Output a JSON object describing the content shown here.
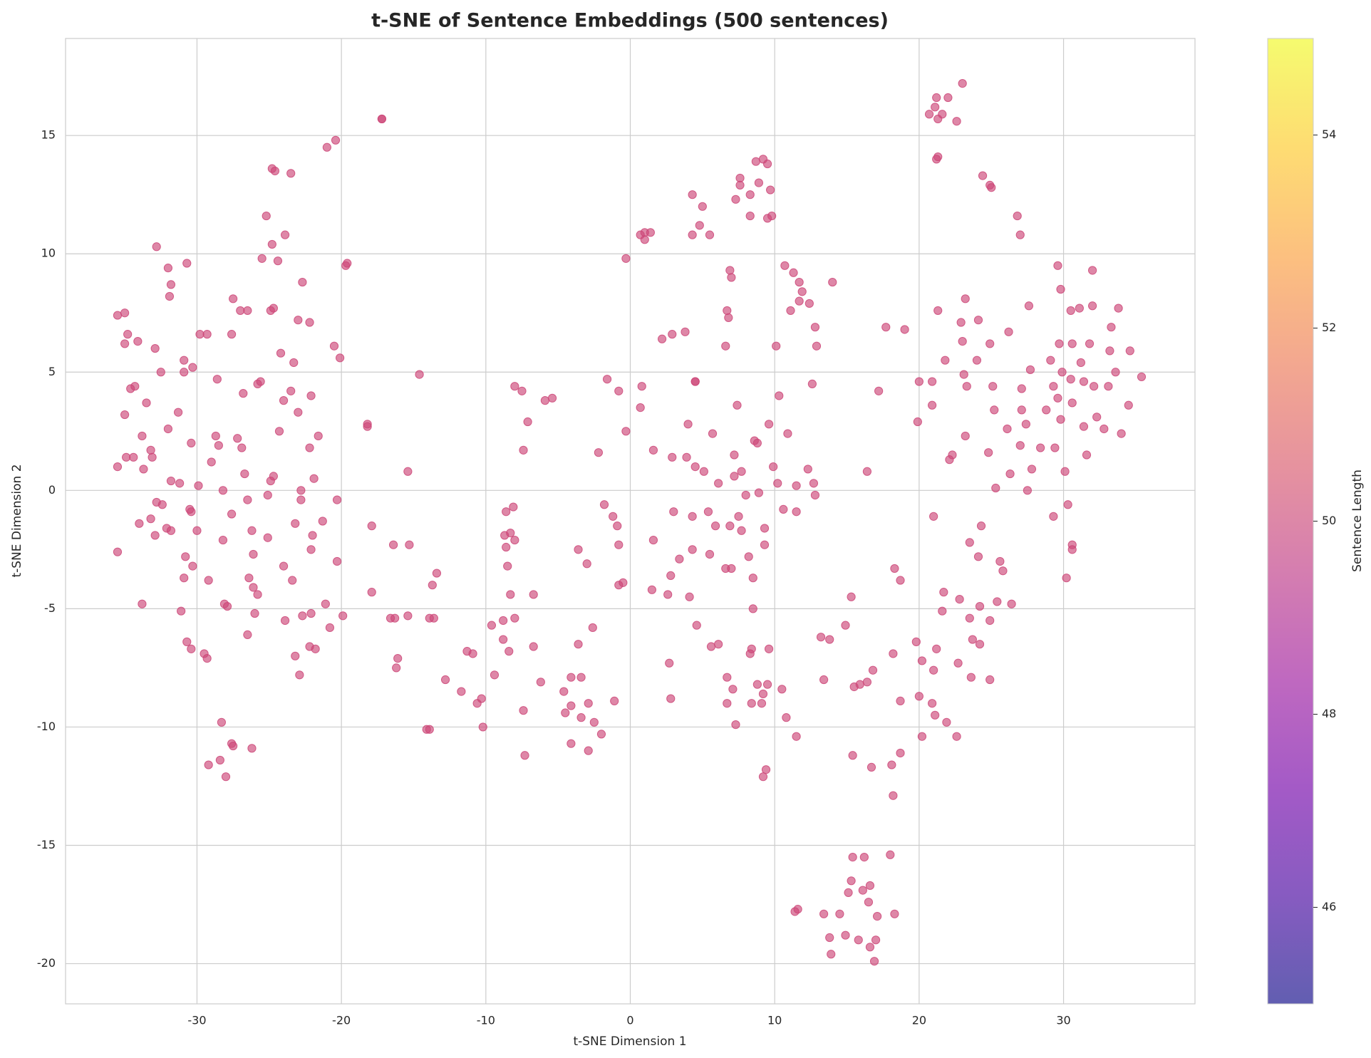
{
  "chart_data": {
    "type": "scatter",
    "title": "t-SNE of Sentence Embeddings (500 sentences)",
    "xlabel": "t-SNE Dimension 1",
    "ylabel": "t-SNE Dimension 2",
    "xlim": [
      -39.1,
      39.1
    ],
    "ylim": [
      -21.7,
      19.1
    ],
    "xticks": [
      -30,
      -20,
      -10,
      0,
      10,
      20,
      30
    ],
    "yticks": [
      -20,
      -15,
      -10,
      -5,
      0,
      5,
      10,
      15
    ],
    "grid": true,
    "colorbar": {
      "label": "Sentence Length",
      "colormap": "plasma",
      "lim": [
        45,
        55
      ],
      "ticks": [
        46,
        48,
        50,
        52,
        54
      ]
    },
    "series": [
      {
        "color": "#cc4778",
        "alpha": 0.65,
        "x": [
          -35.5,
          -35,
          -34.8,
          -35,
          -34.1,
          -34.6,
          -34.3,
          -33.5,
          -35,
          -33.8,
          -35.5,
          -34.9,
          -34.4,
          -33.7,
          -33.2,
          -33.1,
          -32.9,
          -32.8,
          -32,
          -31.8,
          -31.9,
          -32.5,
          -32,
          -31.3,
          -31.8,
          -31.2,
          -32.4,
          -32.8,
          -33.2,
          -34,
          -32.1,
          -31.8,
          -32.9,
          -35.5,
          -33.8,
          -31.1,
          -30.9,
          -30.8,
          -30.3,
          -30.5,
          -30.4,
          -30,
          -29.9,
          -30.4,
          -30.9,
          -30.9,
          -30.3,
          -29.8,
          -29.3,
          -30.7,
          -28.6,
          -28.7,
          -28.5,
          -29,
          -28.2,
          -28.2,
          -29.2,
          -30.7,
          -30.4,
          -29.5,
          -29.3,
          -28.1,
          -27.9,
          -28.3,
          -27.5,
          -27.6,
          -28.4,
          -29.2,
          -28,
          -26.2,
          -27.6,
          -27.6,
          -27.5,
          -27,
          -26.5,
          -27.2,
          -26.9,
          -26.8,
          -26.7,
          -26.5,
          -26.2,
          -26.1,
          -25.8,
          -26.1,
          -26,
          -26.4,
          -26.5,
          -25.8,
          -25.6,
          -25.5,
          -25.2,
          -24.8,
          -24.4,
          -24.9,
          -24.7,
          -24.8,
          -24.6,
          -23.5,
          -23.9,
          -23.3,
          -23,
          -22.7,
          -22.2,
          -24.2,
          -24,
          -24.3,
          -23.5,
          -23,
          -24.7,
          -24.9,
          -25.1,
          -25.1,
          -22.8,
          -22.8,
          -23.2,
          -24,
          -23.4,
          -23.9,
          -23.2,
          -22.9,
          -22.7,
          -22.1,
          -22.2,
          -21.8,
          -22.1,
          -22,
          -21.9,
          -22.2,
          -21.6,
          -22.1,
          -21.3,
          -21.1,
          -20.8,
          -20.3,
          -20.3,
          -20.5,
          -20.1,
          -19.7,
          -19.6,
          -20.4,
          -21,
          -19.9,
          -18.2,
          -18.2,
          -17.9,
          -17.9,
          -17.2,
          -17.2,
          -16.6,
          -16.4,
          -16.3,
          -16.2,
          -16.1,
          -15.4,
          -15.4,
          -15.3,
          -14.6,
          -14.1,
          -13.9,
          -13.9,
          -13.7,
          -13.6,
          -13.4,
          -12.8,
          -11.7,
          -11.3,
          -10.9,
          -10.6,
          -10.3,
          -10.2,
          -9.6,
          -9.4,
          -8.8,
          -8.8,
          -8.7,
          -8.6,
          -8.6,
          -8.3,
          -8.1,
          -8.0,
          -8.5,
          -8.3,
          -8.4,
          -8.0,
          -8.0,
          -7.5,
          -7.4,
          -7.1,
          -7.4,
          -7.3,
          -6.7,
          -6.7,
          -6.2,
          -5.9,
          -5.4,
          -4.6,
          -4.5,
          -4.1,
          -4.1,
          -4.1,
          -3.6,
          -3.6,
          -3.4,
          -3.4,
          -3.0,
          -2.9,
          -2.9,
          -2.5,
          -2.6,
          -2.2,
          -2.0,
          -1.8,
          -1.6,
          -1.2,
          -1.1,
          -0.9,
          -0.8,
          -0.8,
          -0.8,
          -0.5,
          -0.3,
          -0.3,
          0.7,
          1.0,
          1.0,
          1.4,
          0.8,
          0.7,
          1.6,
          1.5,
          1.6,
          2.2,
          2.6,
          2.7,
          2.8,
          2.8,
          2.9,
          2.9,
          3.0,
          3.4,
          3.8,
          3.9,
          4.0,
          4.1,
          4.3,
          4.3,
          4.3,
          4.3,
          4.5,
          4.5,
          4.5,
          4.6,
          4.8,
          5.0,
          5.1,
          5.4,
          5.5,
          5.5,
          5.6,
          5.7,
          5.9,
          6.1,
          6.1,
          6.6,
          6.6,
          6.7,
          6.7,
          6.7,
          6.8,
          6.9,
          6.9,
          7.0,
          7.0,
          7.1,
          7.2,
          7.2,
          7.3,
          7.3,
          7.4,
          7.5,
          7.6,
          7.6,
          7.7,
          7.7,
          8.0,
          8.2,
          8.3,
          8.3,
          8.3,
          8.4,
          8.4,
          8.5,
          8.5,
          8.6,
          8.7,
          8.8,
          8.8,
          8.9,
          8.9,
          9.1,
          9.2,
          9.2,
          9.2,
          9.3,
          9.3,
          9.4,
          9.5,
          9.5,
          9.5,
          9.6,
          9.6,
          9.7,
          9.8,
          9.9,
          10.1,
          10.2,
          10.3,
          10.5,
          10.6,
          10.7,
          10.8,
          10.9,
          11.1,
          11.3,
          11.5,
          11.5,
          11.5,
          11.7,
          11.7,
          11.9,
          12.3,
          12.4,
          12.6,
          12.7,
          12.8,
          12.8,
          12.9,
          11.4,
          11.6,
          13.2,
          13.4,
          13.4,
          13.8,
          13.8,
          13.9,
          14.0,
          14.5,
          14.9,
          14.9,
          15.1,
          15.3,
          15.3,
          15.4,
          15.4,
          15.5,
          15.8,
          15.9,
          16.1,
          16.2,
          16.4,
          16.4,
          16.5,
          16.6,
          16.6,
          16.7,
          16.8,
          16.9,
          17.0,
          17.1,
          17.2,
          17.7,
          18.0,
          18.1,
          18.2,
          18.2,
          18.3,
          18.3,
          18.7,
          18.7,
          18.7,
          19.0,
          19.8,
          19.9,
          20.0,
          20.0,
          20.2,
          20.2,
          20.7,
          20.9,
          20.9,
          20.9,
          21.0,
          21.0,
          21.1,
          21.2,
          21.1,
          21.2,
          21.2,
          21.3,
          21.3,
          21.3,
          21.6,
          21.6,
          21.7,
          21.8,
          21.9,
          22.0,
          22.1,
          22.3,
          22.6,
          22.6,
          22.7,
          22.8,
          22.9,
          23.0,
          23.0,
          23.1,
          23.2,
          23.2,
          23.3,
          23.5,
          23.5,
          23.6,
          23.7,
          24.0,
          24.1,
          24.1,
          24.2,
          24.2,
          24.3,
          24.4,
          24.8,
          24.9,
          25.0,
          24.9,
          24.9,
          24.9,
          25.1,
          25.2,
          25.3,
          25.4,
          25.6,
          25.8,
          26.1,
          26.2,
          26.3,
          26.4,
          26.8,
          27.0,
          27.0,
          27.1,
          27.1,
          27.4,
          27.5,
          27.6,
          27.7,
          27.8,
          28.4,
          28.8,
          29.1,
          29.3,
          29.3,
          29.4,
          29.6,
          29.6,
          29.7,
          29.8,
          29.8,
          29.9,
          30.1,
          30.2,
          30.3,
          30.5,
          30.5,
          30.6,
          30.6,
          30.6,
          30.6,
          31.1,
          31.2,
          31.4,
          31.4,
          31.6,
          31.8,
          32.0,
          32.0,
          32.1,
          32.3,
          32.8,
          33.1,
          33.2,
          33.3,
          33.6,
          33.8,
          34.0,
          34.5,
          34.6,
          35.4
        ],
        "values": [
          7.4,
          7.5,
          6.6,
          6.2,
          6.3,
          4.3,
          4.4,
          3.7,
          3.2,
          2.3,
          1.0,
          1.4,
          1.4,
          0.9,
          1.7,
          1.4,
          6.0,
          10.3,
          9.4,
          8.7,
          8.2,
          5.0,
          2.6,
          3.3,
          0.4,
          0.3,
          -0.6,
          -0.5,
          -1.2,
          -1.4,
          -1.6,
          -1.7,
          -1.9,
          -2.6,
          -4.8,
          -5.1,
          -3.7,
          -2.8,
          -3.2,
          -0.8,
          -0.9,
          -1.7,
          0.2,
          2.0,
          5.5,
          5.0,
          5.2,
          6.6,
          6.6,
          9.6,
          4.7,
          2.3,
          1.9,
          1.2,
          0.0,
          -2.1,
          -3.8,
          -6.4,
          -6.7,
          -6.9,
          -7.1,
          -4.8,
          -4.9,
          -9.8,
          -10.8,
          -10.7,
          -11.4,
          -11.6,
          -12.1,
          -10.9,
          -1.0,
          6.6,
          8.1,
          7.6,
          7.6,
          2.2,
          1.8,
          4.1,
          0.7,
          -0.4,
          -1.7,
          -2.7,
          -4.4,
          -4.1,
          -5.2,
          -3.7,
          -6.1,
          4.5,
          4.6,
          9.8,
          11.6,
          10.4,
          9.7,
          7.6,
          7.7,
          13.6,
          13.5,
          13.4,
          10.8,
          5.4,
          7.2,
          8.8,
          7.1,
          5.8,
          3.8,
          2.5,
          4.2,
          3.3,
          0.6,
          0.4,
          -0.2,
          -2.0,
          0.0,
          -0.4,
          -1.4,
          -3.2,
          -3.8,
          -5.5,
          -7.0,
          -7.8,
          -5.3,
          -5.2,
          -6.6,
          -6.7,
          -2.5,
          -1.9,
          0.5,
          1.8,
          2.3,
          4.0,
          -1.3,
          -4.8,
          -5.8,
          -3.0,
          -0.4,
          6.1,
          5.6,
          9.5,
          9.6,
          14.8,
          14.5,
          -5.3,
          2.8,
          2.7,
          -1.5,
          -4.3,
          15.7,
          15.7,
          -5.4,
          -2.3,
          -5.4,
          -7.5,
          -7.1,
          -5.3,
          0.8,
          -2.3,
          4.9,
          -10.1,
          -10.1,
          -5.4,
          -4.0,
          -5.4,
          -3.5,
          -8.0,
          -8.5,
          -6.8,
          -6.9,
          -9.0,
          -8.8,
          -10.0,
          -5.7,
          -7.8,
          -6.3,
          -5.5,
          -1.9,
          -2.4,
          -0.9,
          -1.8,
          -0.7,
          -2.1,
          -3.2,
          -4.4,
          -6.8,
          -5.4,
          4.4,
          4.2,
          1.7,
          2.9,
          -9.3,
          -11.2,
          -4.4,
          -6.6,
          -8.1,
          3.8,
          3.9,
          -8.5,
          -9.4,
          -7.9,
          -9.1,
          -10.7,
          -6.5,
          -2.5,
          -7.9,
          -9.6,
          -3.1,
          -9.0,
          -11.0,
          -9.8,
          -5.8,
          1.6,
          -10.3,
          -0.6,
          4.7,
          -1.1,
          -8.9,
          -1.5,
          -4.0,
          -2.3,
          4.2,
          -3.9,
          2.5,
          9.8,
          10.8,
          10.9,
          10.6,
          10.9,
          4.4,
          3.5,
          1.7,
          -4.2,
          -2.1,
          6.4,
          -4.4,
          -7.3,
          -8.8,
          -3.6,
          6.6,
          1.4,
          -0.9,
          -2.9,
          6.7,
          1.4,
          2.8,
          -4.5,
          12.5,
          -1.1,
          -2.5,
          10.8,
          4.6,
          4.6,
          1.0,
          -5.7,
          11.2,
          12.0,
          0.8,
          -0.9,
          10.8,
          -2.7,
          -6.6,
          2.4,
          -1.5,
          -6.5,
          0.3,
          -3.3,
          6.1,
          7.6,
          -7.9,
          -9.0,
          7.3,
          9.3,
          -1.5,
          9.0,
          -3.3,
          -8.4,
          1.5,
          0.6,
          12.3,
          -9.9,
          3.6,
          -1.1,
          13.2,
          12.9,
          0.8,
          -1.7,
          -0.2,
          -2.8,
          11.6,
          12.5,
          -6.9,
          -6.7,
          -9.0,
          -3.7,
          -5.0,
          2.1,
          13.9,
          2.0,
          -8.2,
          13.0,
          -0.1,
          -9.0,
          14.0,
          -12.1,
          -8.6,
          -2.3,
          -1.6,
          -11.8,
          -8.2,
          11.5,
          13.8,
          2.8,
          -6.7,
          12.7,
          11.6,
          1.0,
          6.1,
          0.3,
          4.0,
          -8.4,
          -0.8,
          9.5,
          -9.6,
          2.4,
          7.6,
          9.2,
          -0.9,
          -10.4,
          0.2,
          8.8,
          8.0,
          8.4,
          0.9,
          7.9,
          4.5,
          0.3,
          6.9,
          -0.2,
          6.1,
          -17.8,
          -17.7,
          -6.2,
          -8.0,
          -17.9,
          -6.3,
          -18.9,
          -19.6,
          8.8,
          -17.9,
          -5.7,
          -18.8,
          -17.0,
          -16.5,
          -4.5,
          -15.5,
          -11.2,
          -8.3,
          -19.0,
          -8.2,
          -16.9,
          -15.5,
          -8.1,
          0.8,
          -17.4,
          -16.7,
          -19.3,
          -11.7,
          -7.6,
          -19.9,
          -19.0,
          -18.0,
          4.2,
          6.9,
          -15.4,
          -11.6,
          -6.9,
          -12.9,
          -17.9,
          -3.3,
          -3.8,
          -8.9,
          -11.1,
          6.8,
          -6.4,
          2.9,
          -8.7,
          4.6,
          -10.4,
          -7.2,
          15.9,
          3.6,
          -9.0,
          4.6,
          -1.1,
          -7.6,
          16.2,
          16.6,
          -9.5,
          -6.7,
          14.0,
          14.1,
          15.7,
          7.6,
          15.9,
          -5.1,
          -4.3,
          5.5,
          -9.8,
          16.6,
          1.3,
          1.5,
          15.6,
          -10.4,
          -7.3,
          -4.6,
          7.1,
          6.3,
          17.2,
          4.9,
          8.1,
          2.3,
          4.4,
          -2.2,
          -5.4,
          -7.9,
          -6.3,
          5.5,
          7.2,
          -2.8,
          -4.9,
          -6.5,
          -1.5,
          13.3,
          1.6,
          12.9,
          12.8,
          6.2,
          -5.5,
          -8.0,
          4.4,
          3.4,
          0.1,
          -4.7,
          -3.0,
          -3.4,
          2.6,
          6.7,
          0.7,
          -4.8,
          11.6,
          10.8,
          1.9,
          4.3,
          3.4,
          2.8,
          0.0,
          7.8,
          5.1,
          0.9,
          1.8,
          3.4,
          5.5,
          -1.1,
          4.4,
          1.8,
          9.5,
          3.9,
          6.2,
          3.0,
          8.5,
          5.0,
          0.8,
          -3.7,
          -0.6,
          7.6,
          4.7,
          3.7,
          6.2,
          -2.3,
          -2.5,
          7.7,
          5.4,
          4.6,
          2.7,
          1.5,
          6.2,
          7.8,
          9.3,
          4.4,
          3.1,
          2.6,
          4.4,
          5.9,
          6.9,
          5.0,
          7.7,
          2.4,
          3.6,
          5.9,
          4.8
        ]
      }
    ]
  }
}
